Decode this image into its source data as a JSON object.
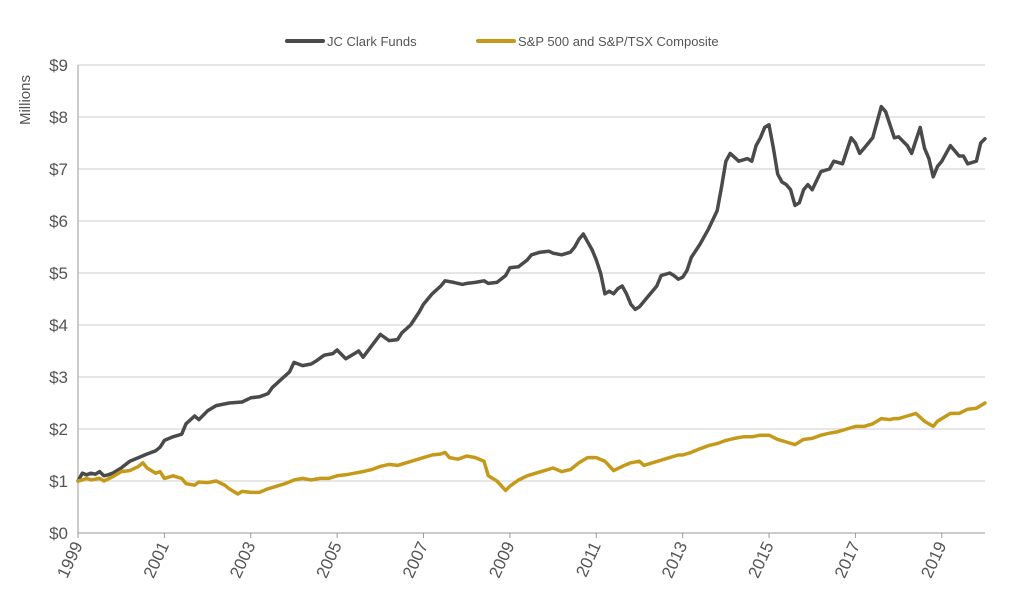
{
  "chart_data": {
    "type": "line",
    "ylabel": "Millions",
    "xlim": [
      1999,
      2020
    ],
    "ylim": [
      0,
      9
    ],
    "y_ticks": [
      0,
      1,
      2,
      3,
      4,
      5,
      6,
      7,
      8,
      9
    ],
    "y_tick_labels": [
      "$0",
      "$1",
      "$2",
      "$3",
      "$4",
      "$5",
      "$6",
      "$7",
      "$8",
      "$9"
    ],
    "x_ticks": [
      1999,
      2001,
      2003,
      2005,
      2007,
      2009,
      2011,
      2013,
      2015,
      2017,
      2019
    ],
    "x_tick_labels": [
      "1999",
      "2001",
      "2003",
      "2005",
      "2007",
      "2009",
      "2011",
      "2013",
      "2015",
      "2017",
      "2019"
    ],
    "grid": "horizontal",
    "legend_position": "top-center",
    "series": [
      {
        "name": "JC Clark Funds",
        "color": "#4a4a4a",
        "points": [
          [
            1999.0,
            1.0
          ],
          [
            1999.1,
            1.15
          ],
          [
            1999.2,
            1.12
          ],
          [
            1999.3,
            1.15
          ],
          [
            1999.4,
            1.13
          ],
          [
            1999.5,
            1.18
          ],
          [
            1999.6,
            1.1
          ],
          [
            1999.7,
            1.12
          ],
          [
            1999.8,
            1.15
          ],
          [
            2000.0,
            1.25
          ],
          [
            2000.2,
            1.38
          ],
          [
            2000.4,
            1.45
          ],
          [
            2000.6,
            1.52
          ],
          [
            2000.8,
            1.58
          ],
          [
            2000.9,
            1.65
          ],
          [
            2001.0,
            1.78
          ],
          [
            2001.2,
            1.85
          ],
          [
            2001.4,
            1.9
          ],
          [
            2001.5,
            2.1
          ],
          [
            2001.7,
            2.25
          ],
          [
            2001.8,
            2.18
          ],
          [
            2002.0,
            2.35
          ],
          [
            2002.2,
            2.45
          ],
          [
            2002.5,
            2.5
          ],
          [
            2002.8,
            2.52
          ],
          [
            2003.0,
            2.6
          ],
          [
            2003.2,
            2.62
          ],
          [
            2003.4,
            2.68
          ],
          [
            2003.5,
            2.8
          ],
          [
            2003.7,
            2.95
          ],
          [
            2003.9,
            3.1
          ],
          [
            2004.0,
            3.28
          ],
          [
            2004.2,
            3.22
          ],
          [
            2004.4,
            3.25
          ],
          [
            2004.5,
            3.3
          ],
          [
            2004.7,
            3.42
          ],
          [
            2004.9,
            3.45
          ],
          [
            2005.0,
            3.52
          ],
          [
            2005.2,
            3.35
          ],
          [
            2005.4,
            3.45
          ],
          [
            2005.5,
            3.5
          ],
          [
            2005.6,
            3.38
          ],
          [
            2005.8,
            3.6
          ],
          [
            2006.0,
            3.82
          ],
          [
            2006.2,
            3.7
          ],
          [
            2006.4,
            3.72
          ],
          [
            2006.5,
            3.85
          ],
          [
            2006.7,
            4.0
          ],
          [
            2006.9,
            4.25
          ],
          [
            2007.0,
            4.4
          ],
          [
            2007.2,
            4.6
          ],
          [
            2007.4,
            4.75
          ],
          [
            2007.5,
            4.85
          ],
          [
            2007.7,
            4.82
          ],
          [
            2007.9,
            4.78
          ],
          [
            2008.0,
            4.8
          ],
          [
            2008.2,
            4.82
          ],
          [
            2008.4,
            4.85
          ],
          [
            2008.5,
            4.8
          ],
          [
            2008.7,
            4.82
          ],
          [
            2008.9,
            4.95
          ],
          [
            2009.0,
            5.1
          ],
          [
            2009.2,
            5.12
          ],
          [
            2009.4,
            5.25
          ],
          [
            2009.5,
            5.35
          ],
          [
            2009.7,
            5.4
          ],
          [
            2009.9,
            5.42
          ],
          [
            2010.0,
            5.38
          ],
          [
            2010.2,
            5.35
          ],
          [
            2010.4,
            5.4
          ],
          [
            2010.5,
            5.5
          ],
          [
            2010.6,
            5.65
          ],
          [
            2010.7,
            5.75
          ],
          [
            2010.8,
            5.6
          ],
          [
            2010.9,
            5.45
          ],
          [
            2011.0,
            5.25
          ],
          [
            2011.1,
            5.0
          ],
          [
            2011.2,
            4.6
          ],
          [
            2011.3,
            4.65
          ],
          [
            2011.4,
            4.6
          ],
          [
            2011.5,
            4.7
          ],
          [
            2011.6,
            4.75
          ],
          [
            2011.7,
            4.6
          ],
          [
            2011.8,
            4.4
          ],
          [
            2011.9,
            4.3
          ],
          [
            2012.0,
            4.35
          ],
          [
            2012.2,
            4.55
          ],
          [
            2012.4,
            4.75
          ],
          [
            2012.5,
            4.95
          ],
          [
            2012.7,
            5.0
          ],
          [
            2012.8,
            4.95
          ],
          [
            2012.9,
            4.88
          ],
          [
            2013.0,
            4.92
          ],
          [
            2013.1,
            5.05
          ],
          [
            2013.2,
            5.3
          ],
          [
            2013.4,
            5.55
          ],
          [
            2013.6,
            5.85
          ],
          [
            2013.8,
            6.2
          ],
          [
            2013.9,
            6.65
          ],
          [
            2014.0,
            7.15
          ],
          [
            2014.1,
            7.3
          ],
          [
            2014.3,
            7.15
          ],
          [
            2014.5,
            7.2
          ],
          [
            2014.6,
            7.15
          ],
          [
            2014.7,
            7.45
          ],
          [
            2014.8,
            7.6
          ],
          [
            2014.9,
            7.8
          ],
          [
            2015.0,
            7.85
          ],
          [
            2015.1,
            7.4
          ],
          [
            2015.2,
            6.9
          ],
          [
            2015.3,
            6.75
          ],
          [
            2015.4,
            6.7
          ],
          [
            2015.5,
            6.6
          ],
          [
            2015.6,
            6.3
          ],
          [
            2015.7,
            6.35
          ],
          [
            2015.8,
            6.6
          ],
          [
            2015.9,
            6.7
          ],
          [
            2016.0,
            6.6
          ],
          [
            2016.2,
            6.95
          ],
          [
            2016.4,
            7.0
          ],
          [
            2016.5,
            7.15
          ],
          [
            2016.7,
            7.1
          ],
          [
            2016.9,
            7.6
          ],
          [
            2017.0,
            7.5
          ],
          [
            2017.1,
            7.3
          ],
          [
            2017.2,
            7.4
          ],
          [
            2017.4,
            7.6
          ],
          [
            2017.5,
            7.9
          ],
          [
            2017.6,
            8.2
          ],
          [
            2017.7,
            8.1
          ],
          [
            2017.9,
            7.6
          ],
          [
            2018.0,
            7.62
          ],
          [
            2018.2,
            7.45
          ],
          [
            2018.3,
            7.3
          ],
          [
            2018.5,
            7.8
          ],
          [
            2018.6,
            7.4
          ],
          [
            2018.7,
            7.2
          ],
          [
            2018.8,
            6.85
          ],
          [
            2018.9,
            7.05
          ],
          [
            2019.0,
            7.15
          ],
          [
            2019.2,
            7.45
          ],
          [
            2019.4,
            7.25
          ],
          [
            2019.5,
            7.25
          ],
          [
            2019.6,
            7.1
          ],
          [
            2019.8,
            7.15
          ],
          [
            2019.9,
            7.5
          ],
          [
            2020.0,
            7.58
          ]
        ]
      },
      {
        "name": "S&P 500 and S&P/TSX Composite",
        "color": "#c59a1a",
        "points": [
          [
            1999.0,
            1.0
          ],
          [
            1999.1,
            1.02
          ],
          [
            1999.2,
            1.05
          ],
          [
            1999.3,
            1.02
          ],
          [
            1999.5,
            1.05
          ],
          [
            1999.6,
            1.0
          ],
          [
            1999.8,
            1.08
          ],
          [
            2000.0,
            1.18
          ],
          [
            2000.2,
            1.2
          ],
          [
            2000.4,
            1.28
          ],
          [
            2000.5,
            1.35
          ],
          [
            2000.6,
            1.25
          ],
          [
            2000.8,
            1.15
          ],
          [
            2000.9,
            1.18
          ],
          [
            2001.0,
            1.05
          ],
          [
            2001.2,
            1.1
          ],
          [
            2001.4,
            1.05
          ],
          [
            2001.5,
            0.95
          ],
          [
            2001.7,
            0.92
          ],
          [
            2001.8,
            0.98
          ],
          [
            2002.0,
            0.97
          ],
          [
            2002.2,
            1.0
          ],
          [
            2002.4,
            0.92
          ],
          [
            2002.5,
            0.85
          ],
          [
            2002.7,
            0.75
          ],
          [
            2002.8,
            0.8
          ],
          [
            2003.0,
            0.78
          ],
          [
            2003.2,
            0.78
          ],
          [
            2003.4,
            0.85
          ],
          [
            2003.6,
            0.9
          ],
          [
            2003.8,
            0.95
          ],
          [
            2004.0,
            1.02
          ],
          [
            2004.2,
            1.05
          ],
          [
            2004.4,
            1.02
          ],
          [
            2004.6,
            1.05
          ],
          [
            2004.8,
            1.05
          ],
          [
            2005.0,
            1.1
          ],
          [
            2005.2,
            1.12
          ],
          [
            2005.4,
            1.15
          ],
          [
            2005.6,
            1.18
          ],
          [
            2005.8,
            1.22
          ],
          [
            2006.0,
            1.28
          ],
          [
            2006.2,
            1.32
          ],
          [
            2006.4,
            1.3
          ],
          [
            2006.6,
            1.35
          ],
          [
            2006.8,
            1.4
          ],
          [
            2007.0,
            1.45
          ],
          [
            2007.2,
            1.5
          ],
          [
            2007.4,
            1.52
          ],
          [
            2007.5,
            1.55
          ],
          [
            2007.6,
            1.45
          ],
          [
            2007.8,
            1.42
          ],
          [
            2008.0,
            1.48
          ],
          [
            2008.2,
            1.45
          ],
          [
            2008.4,
            1.38
          ],
          [
            2008.5,
            1.1
          ],
          [
            2008.7,
            1.0
          ],
          [
            2008.9,
            0.82
          ],
          [
            2009.0,
            0.9
          ],
          [
            2009.2,
            1.02
          ],
          [
            2009.4,
            1.1
          ],
          [
            2009.6,
            1.15
          ],
          [
            2009.8,
            1.2
          ],
          [
            2010.0,
            1.25
          ],
          [
            2010.2,
            1.18
          ],
          [
            2010.4,
            1.22
          ],
          [
            2010.6,
            1.35
          ],
          [
            2010.8,
            1.45
          ],
          [
            2011.0,
            1.45
          ],
          [
            2011.2,
            1.38
          ],
          [
            2011.4,
            1.2
          ],
          [
            2011.6,
            1.28
          ],
          [
            2011.8,
            1.35
          ],
          [
            2012.0,
            1.38
          ],
          [
            2012.1,
            1.3
          ],
          [
            2012.3,
            1.35
          ],
          [
            2012.5,
            1.4
          ],
          [
            2012.7,
            1.45
          ],
          [
            2012.9,
            1.5
          ],
          [
            2013.0,
            1.5
          ],
          [
            2013.2,
            1.55
          ],
          [
            2013.4,
            1.62
          ],
          [
            2013.6,
            1.68
          ],
          [
            2013.8,
            1.72
          ],
          [
            2014.0,
            1.78
          ],
          [
            2014.2,
            1.82
          ],
          [
            2014.4,
            1.85
          ],
          [
            2014.6,
            1.85
          ],
          [
            2014.8,
            1.88
          ],
          [
            2015.0,
            1.88
          ],
          [
            2015.2,
            1.8
          ],
          [
            2015.4,
            1.75
          ],
          [
            2015.6,
            1.7
          ],
          [
            2015.8,
            1.8
          ],
          [
            2016.0,
            1.82
          ],
          [
            2016.2,
            1.88
          ],
          [
            2016.4,
            1.92
          ],
          [
            2016.6,
            1.95
          ],
          [
            2016.8,
            2.0
          ],
          [
            2017.0,
            2.05
          ],
          [
            2017.2,
            2.05
          ],
          [
            2017.4,
            2.1
          ],
          [
            2017.6,
            2.2
          ],
          [
            2017.8,
            2.18
          ],
          [
            2017.9,
            2.2
          ],
          [
            2018.0,
            2.2
          ],
          [
            2018.2,
            2.25
          ],
          [
            2018.4,
            2.3
          ],
          [
            2018.6,
            2.15
          ],
          [
            2018.8,
            2.05
          ],
          [
            2018.9,
            2.15
          ],
          [
            2019.0,
            2.2
          ],
          [
            2019.2,
            2.3
          ],
          [
            2019.4,
            2.3
          ],
          [
            2019.6,
            2.38
          ],
          [
            2019.8,
            2.4
          ],
          [
            2020.0,
            2.5
          ]
        ]
      }
    ]
  }
}
